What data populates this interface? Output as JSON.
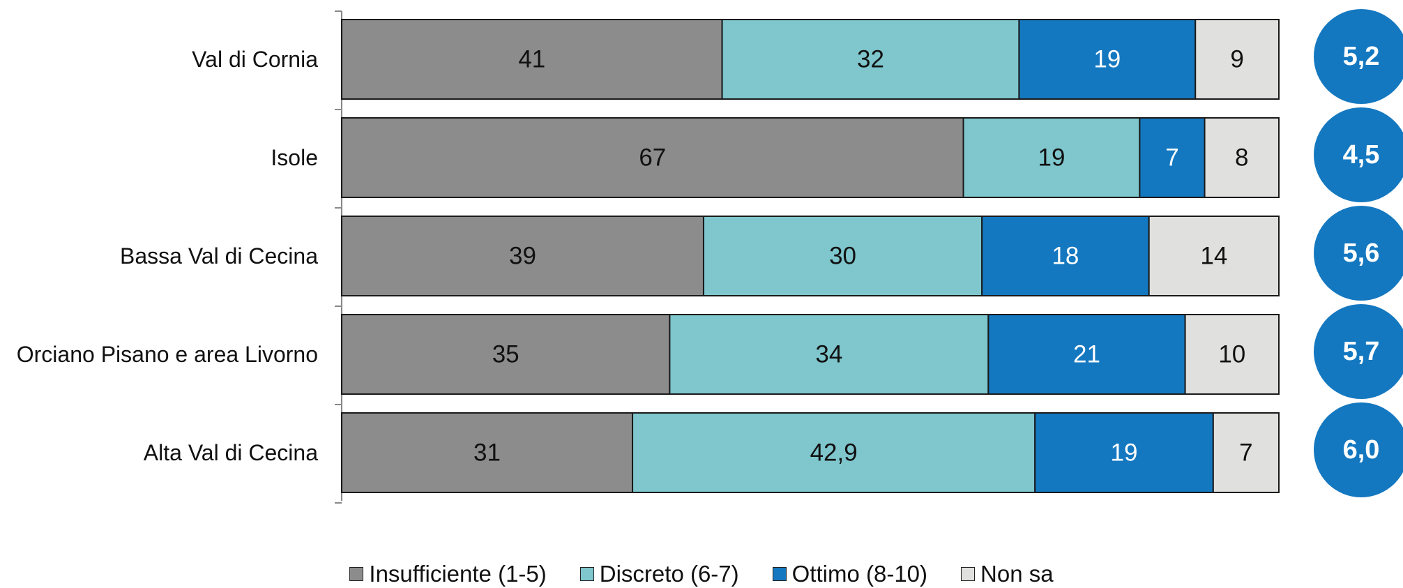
{
  "chart_data": {
    "type": "bar",
    "orientation": "horizontal",
    "stacked": true,
    "categories": [
      "Val di Cornia",
      "Isole",
      "Bassa Val di Cecina",
      "Orciano Pisano e area Livorno",
      "Alta Val di Cecina"
    ],
    "series": [
      {
        "name": "Insufficiente (1-5)",
        "color": "#8c8c8c",
        "values": [
          41,
          67,
          39,
          35,
          31
        ],
        "labels": [
          "41",
          "67",
          "39",
          "35",
          "31"
        ]
      },
      {
        "name": "Discreto (6-7)",
        "color": "#7fc6cd",
        "values": [
          32,
          19,
          30,
          34,
          42.9
        ],
        "labels": [
          "32",
          "19",
          "30",
          "34",
          "42,9"
        ]
      },
      {
        "name": "Ottimo (8-10)",
        "color": "#1478c0",
        "values": [
          19,
          7,
          18,
          21,
          19
        ],
        "labels": [
          "19",
          "7",
          "18",
          "21",
          "19"
        ]
      },
      {
        "name": "Non sa",
        "color": "#e0e0de",
        "values": [
          9,
          8,
          14,
          10,
          7
        ],
        "labels": [
          "9",
          "8",
          "14",
          "10",
          "7"
        ]
      }
    ],
    "scores": [
      "5,2",
      "4,5",
      "5,6",
      "5,7",
      "6,0"
    ],
    "score_color": "#1478c0",
    "legend_position": "bottom",
    "grid": false,
    "title": "",
    "xlabel": "",
    "ylabel": ""
  }
}
